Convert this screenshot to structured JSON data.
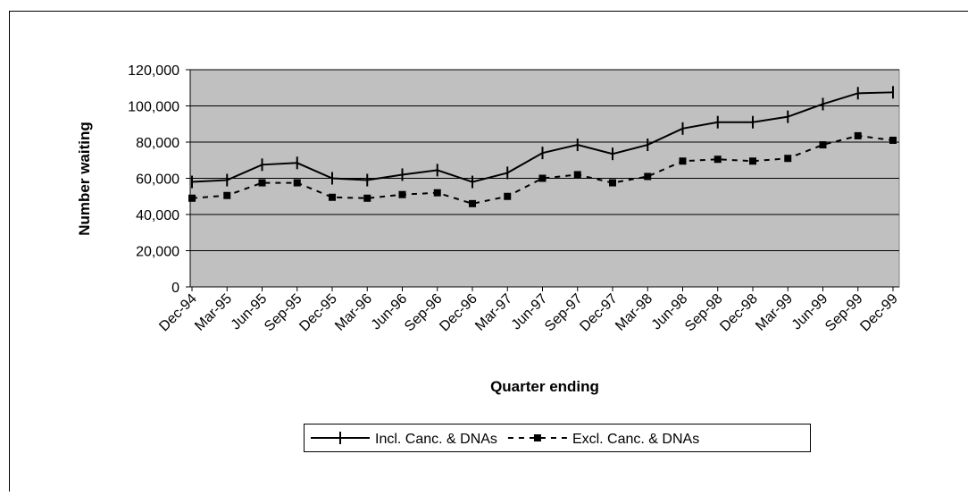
{
  "chart_data": {
    "type": "line",
    "x_label": "Quarter ending",
    "y_label": "Number waiting",
    "categories": [
      "Dec-94",
      "Mar-95",
      "Jun-95",
      "Sep-95",
      "Dec-95",
      "Mar-96",
      "Jun-96",
      "Sep-96",
      "Dec-96",
      "Mar-97",
      "Jun-97",
      "Sep-97",
      "Dec-97",
      "Mar-98",
      "Jun-98",
      "Sep-98",
      "Dec-98",
      "Mar-99",
      "Jun-99",
      "Sep-99",
      "Dec-99"
    ],
    "series": [
      {
        "name": "Incl. Canc. & DNAs",
        "color": "#000000",
        "marker": "tick",
        "dashed": false,
        "values": [
          58000,
          59000,
          67500,
          68500,
          60000,
          59000,
          62000,
          64500,
          58000,
          63000,
          74000,
          78500,
          73500,
          78500,
          87500,
          91000,
          91000,
          94000,
          101000,
          107000,
          107500
        ]
      },
      {
        "name": "Excl. Canc. & DNAs",
        "color": "#000000",
        "marker": "square",
        "dashed": true,
        "values": [
          49000,
          50500,
          57500,
          57500,
          49500,
          49000,
          51000,
          52000,
          46000,
          50000,
          60000,
          62000,
          57500,
          61000,
          69500,
          70500,
          69500,
          71000,
          78500,
          83500,
          81000
        ]
      }
    ],
    "ylim": [
      0,
      120000
    ],
    "yticks": [
      0,
      {
        "value": 20000,
        "label": "20,000"
      },
      {
        "value": 40000,
        "label": "40,000"
      },
      {
        "value": 60000,
        "label": "60,000"
      },
      {
        "value": 80000,
        "label": "80,000"
      },
      {
        "value": 100000,
        "label": "100,000"
      },
      {
        "value": 120000,
        "label": "120,000"
      }
    ],
    "grid": true,
    "plot_background": "#c0c0c0"
  }
}
